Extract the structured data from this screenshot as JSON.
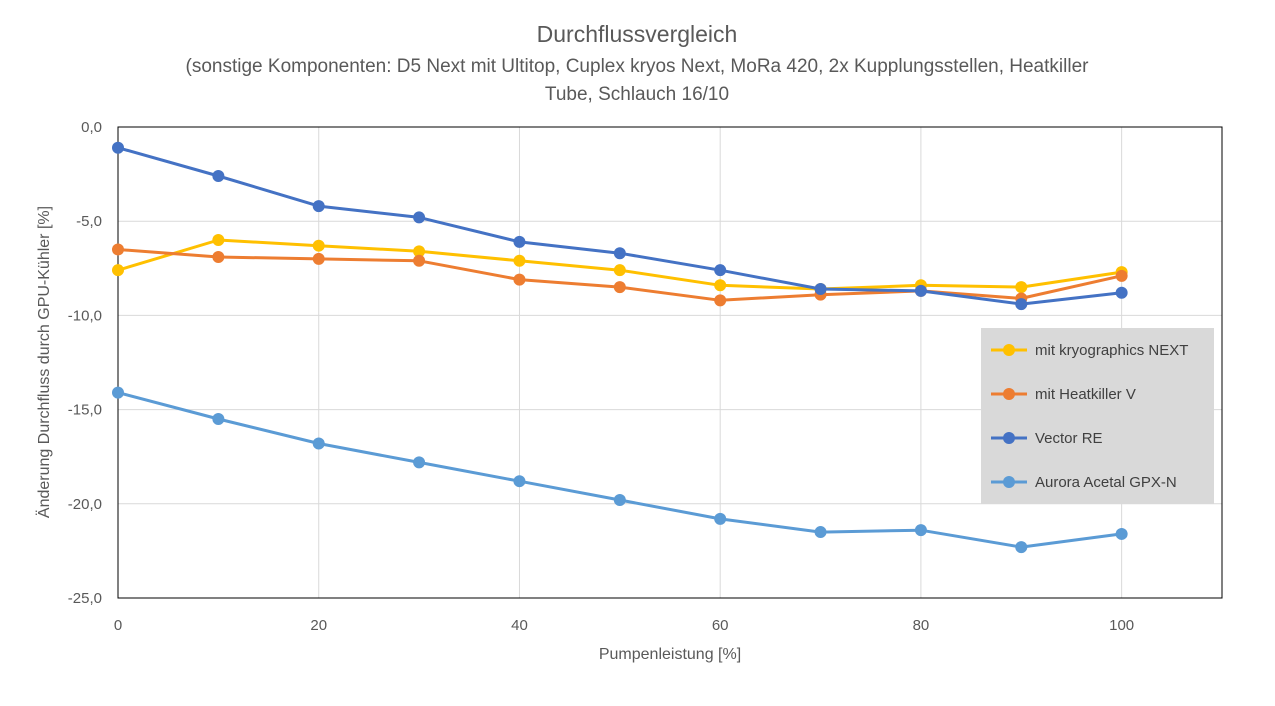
{
  "chart_data": {
    "type": "line",
    "title": "Durchflussvergleich",
    "subtitle_lines": [
      "(sonstige Komponenten:  D5 Next mit Ultitop, Cuplex kryos Next, MoRa 420,  2x Kupplungsstellen, Heatkiller",
      "Tube, Schlauch 16/10"
    ],
    "xlabel": "Pumpenleistung [%]",
    "ylabel": "Änderung Durchfluss durch GPU-Kühler  [%]",
    "xlim": [
      0,
      110
    ],
    "ylim": [
      -25,
      0
    ],
    "x_ticks": [
      0,
      20,
      40,
      60,
      80,
      100
    ],
    "x_tick_labels": [
      "0",
      "20",
      "40",
      "60",
      "80",
      "100"
    ],
    "y_ticks": [
      0,
      -5,
      -10,
      -15,
      -20,
      -25
    ],
    "y_tick_labels": [
      "0,0",
      "-5,0",
      "-10,0",
      "-15,0",
      "-20,0",
      "-25,0"
    ],
    "grid": true,
    "legend_position": "right",
    "x": [
      0,
      10,
      20,
      30,
      40,
      50,
      60,
      70,
      80,
      90,
      100
    ],
    "series": [
      {
        "name": "mit kryographics NEXT",
        "color": "#FFC000",
        "values": [
          -7.6,
          -6.0,
          -6.3,
          -6.6,
          -7.1,
          -7.6,
          -8.4,
          -8.6,
          -8.4,
          -8.5,
          -7.7
        ]
      },
      {
        "name": "mit Heatkiller V",
        "color": "#ED7D31",
        "values": [
          -6.5,
          -6.9,
          -7.0,
          -7.1,
          -8.1,
          -8.5,
          -9.2,
          -8.9,
          -8.7,
          -9.1,
          -7.9
        ]
      },
      {
        "name": "Vector RE",
        "color": "#4472C4",
        "values": [
          -1.1,
          -2.6,
          -4.2,
          -4.8,
          -6.1,
          -6.7,
          -7.6,
          -8.6,
          -8.7,
          -9.4,
          -8.8
        ]
      },
      {
        "name": "Aurora Acetal GPX-N",
        "color": "#5B9BD5",
        "values": [
          -14.1,
          -15.5,
          -16.8,
          -17.8,
          -18.8,
          -19.8,
          -20.8,
          -21.5,
          -21.4,
          -22.3,
          -21.6
        ]
      }
    ]
  }
}
